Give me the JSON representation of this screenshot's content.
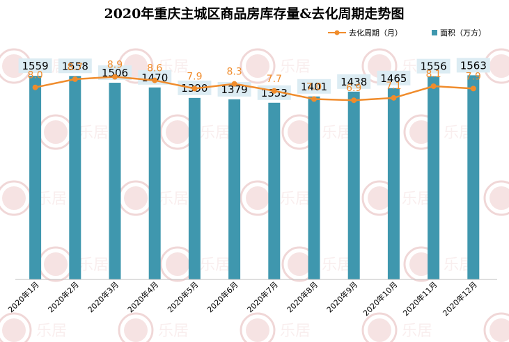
{
  "chart_data": {
    "type": "bar+line",
    "title": "2020年重庆主城区商品房库存量&去化周期走势图",
    "categories": [
      "2020年1月",
      "2020年2月",
      "2020年3月",
      "2020年4月",
      "2020年5月",
      "2020年6月",
      "2020年7月",
      "2020年8月",
      "2020年9月",
      "2020年10月",
      "2020年11月",
      "2020年12月"
    ],
    "series": [
      {
        "name": "面积（万方）",
        "type": "bar",
        "axis": "left",
        "color": "#3f97ae",
        "values": [
          1559,
          1558,
          1506,
          1470,
          1390,
          1379,
          1353,
          1401,
          1438,
          1465,
          1556,
          1563
        ]
      },
      {
        "name": "去化周期（月）",
        "type": "line",
        "axis": "right",
        "color": "#f08c2c",
        "values": [
          8.0,
          8.7,
          8.9,
          8.6,
          7.9,
          8.3,
          7.7,
          7.0,
          6.9,
          7.1,
          8.1,
          7.9
        ]
      }
    ],
    "ylim_left": [
      0,
      1650
    ],
    "ylim_right": [
      -8.4,
      10.0
    ],
    "legend_position": "top-right",
    "grid": false,
    "watermark": "乐居"
  }
}
